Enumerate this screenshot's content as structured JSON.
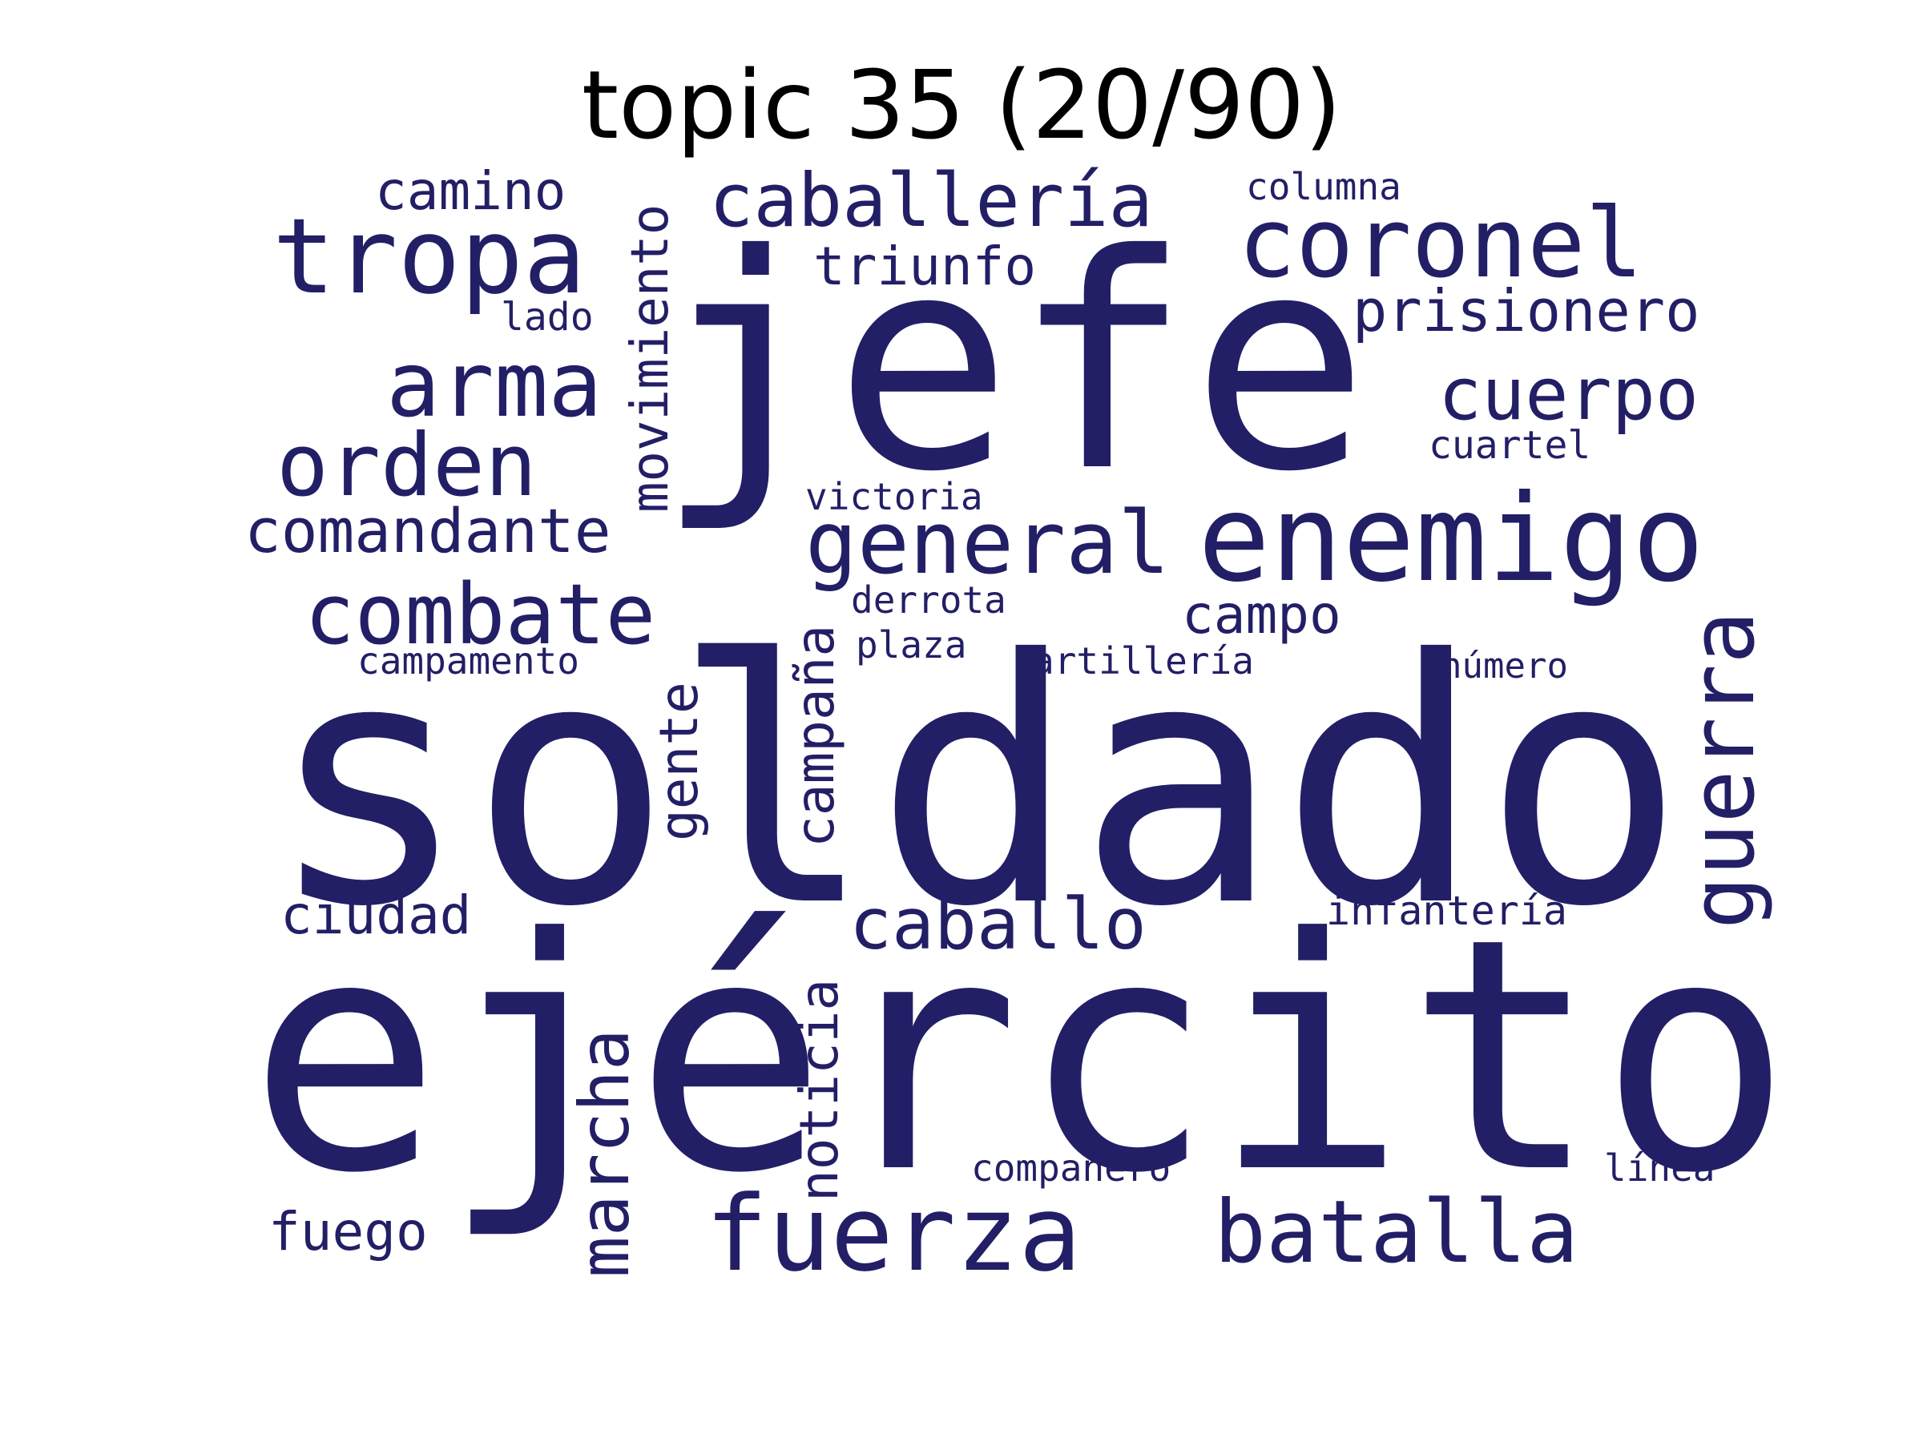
{
  "title": "topic 35 (20/90)",
  "colors": {
    "background": "#ffffff",
    "title": "#000000",
    "words": "#221f66"
  },
  "words": [
    "soldado",
    "ejército",
    "jefe",
    "enemigo",
    "tropa",
    "coronel",
    "caballería",
    "fuerza",
    "batalla",
    "general",
    "combate",
    "arma",
    "orden",
    "cuerpo",
    "caballo",
    "guerra",
    "marcha",
    "comandante",
    "prisionero",
    "movimiento",
    "triunfo",
    "camino",
    "campo",
    "noticia",
    "campaña",
    "ciudad",
    "gente",
    "fuego",
    "columna",
    "cuartel",
    "lado",
    "victoria",
    "derrota",
    "plaza",
    "artillería",
    "campamento",
    "número",
    "infantería",
    "compañero",
    "línea"
  ]
}
